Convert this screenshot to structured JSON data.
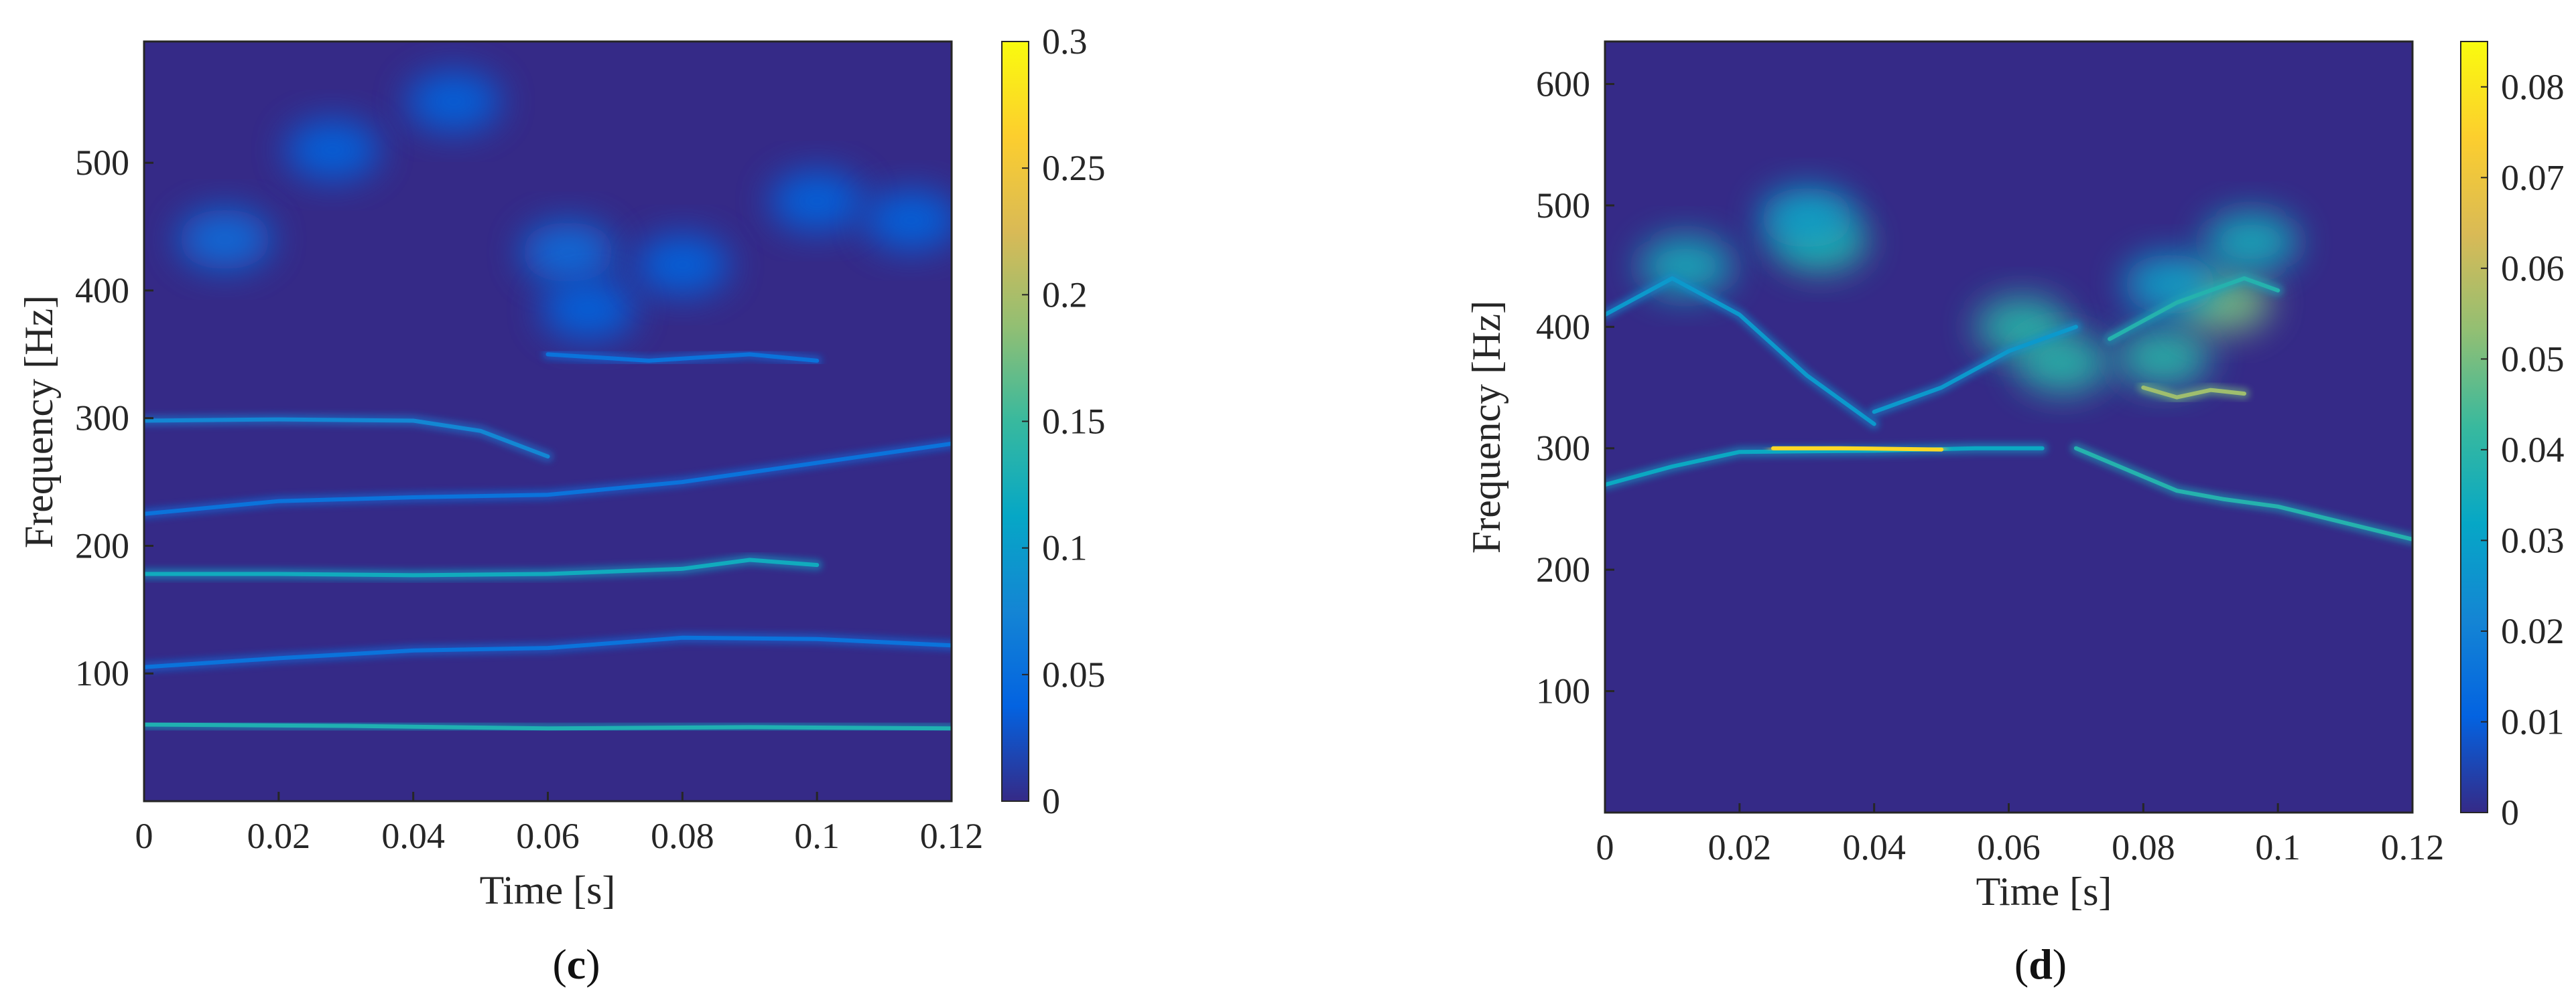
{
  "chart_data": [
    {
      "type": "heatmap",
      "panel_label": "c",
      "xlabel": "Time [s]",
      "ylabel": "Frequency [Hz]",
      "xlim": [
        0,
        0.12
      ],
      "ylim": [
        0,
        595
      ],
      "xticks": [
        "0",
        "0.02",
        "0.04",
        "0.06",
        "0.08",
        "0.1",
        "0.12"
      ],
      "yticks": [
        100,
        200,
        300,
        400,
        500
      ],
      "colorbar": {
        "range": [
          0,
          0.3
        ],
        "ticks": [
          "0",
          "0.05",
          "0.1",
          "0.15",
          "0.2",
          "0.25",
          "0.3"
        ],
        "colormap": "parula"
      },
      "ridges": [
        {
          "points": [
            [
              0,
              60
            ],
            [
              0.03,
              59
            ],
            [
              0.06,
              57
            ],
            [
              0.09,
              58
            ],
            [
              0.12,
              57
            ]
          ],
          "intensity": 0.12
        },
        {
          "points": [
            [
              0,
              105
            ],
            [
              0.02,
              112
            ],
            [
              0.04,
              118
            ],
            [
              0.06,
              120
            ],
            [
              0.08,
              128
            ],
            [
              0.1,
              127
            ],
            [
              0.12,
              122
            ]
          ],
          "intensity": 0.05
        },
        {
          "points": [
            [
              0,
              178
            ],
            [
              0.02,
              178
            ],
            [
              0.04,
              177
            ],
            [
              0.06,
              178
            ],
            [
              0.08,
              182
            ],
            [
              0.09,
              189
            ],
            [
              0.1,
              185
            ]
          ],
          "intensity": 0.11
        },
        {
          "points": [
            [
              0,
              225
            ],
            [
              0.02,
              235
            ],
            [
              0.04,
              238
            ],
            [
              0.06,
              240
            ],
            [
              0.08,
              250
            ],
            [
              0.1,
              265
            ],
            [
              0.12,
              280
            ]
          ],
          "intensity": 0.05
        },
        {
          "points": [
            [
              0,
              298
            ],
            [
              0.02,
              299
            ],
            [
              0.04,
              298
            ],
            [
              0.05,
              290
            ],
            [
              0.06,
              270
            ]
          ],
          "intensity": 0.07
        },
        {
          "points": [
            [
              0.06,
              350
            ],
            [
              0.075,
              345
            ],
            [
              0.09,
              350
            ],
            [
              0.1,
              345
            ]
          ],
          "intensity": 0.05
        }
      ],
      "blobs": [
        {
          "t": 0.012,
          "f": 440,
          "intensity": 0.05
        },
        {
          "t": 0.028,
          "f": 510,
          "intensity": 0.04
        },
        {
          "t": 0.046,
          "f": 548,
          "intensity": 0.04
        },
        {
          "t": 0.063,
          "f": 430,
          "intensity": 0.05
        },
        {
          "t": 0.066,
          "f": 385,
          "intensity": 0.04
        },
        {
          "t": 0.08,
          "f": 420,
          "intensity": 0.04
        },
        {
          "t": 0.1,
          "f": 470,
          "intensity": 0.04
        },
        {
          "t": 0.114,
          "f": 455,
          "intensity": 0.04
        }
      ]
    },
    {
      "type": "heatmap",
      "panel_label": "d",
      "xlabel": "Time [s]",
      "ylabel": "Frequency [Hz]",
      "xlim": [
        0,
        0.12
      ],
      "ylim": [
        0,
        635
      ],
      "xticks": [
        "0",
        "0.02",
        "0.04",
        "0.06",
        "0.08",
        "0.1",
        "0.12"
      ],
      "yticks": [
        100,
        200,
        300,
        400,
        500,
        600
      ],
      "colorbar": {
        "range": [
          0,
          0.085
        ],
        "ticks": [
          "0",
          "0.01",
          "0.02",
          "0.03",
          "0.04",
          "0.05",
          "0.06",
          "0.07",
          "0.08"
        ],
        "colormap": "parula"
      },
      "ridges": [
        {
          "points": [
            [
              0,
              270
            ],
            [
              0.01,
              285
            ],
            [
              0.02,
              297
            ],
            [
              0.04,
              298
            ],
            [
              0.055,
              300
            ],
            [
              0.065,
              300
            ]
          ],
          "intensity": 0.03
        },
        {
          "points": [
            [
              0.025,
              300
            ],
            [
              0.035,
              300
            ],
            [
              0.05,
              299
            ]
          ],
          "intensity": 0.07
        },
        {
          "points": [
            [
              0.07,
              300
            ],
            [
              0.085,
              265
            ],
            [
              0.092,
              258
            ],
            [
              0.1,
              252
            ],
            [
              0.12,
              225
            ]
          ],
          "intensity": 0.035
        },
        {
          "points": [
            [
              0,
              410
            ],
            [
              0.01,
              440
            ],
            [
              0.02,
              410
            ],
            [
              0.03,
              360
            ],
            [
              0.04,
              320
            ]
          ],
          "intensity": 0.025
        },
        {
          "points": [
            [
              0.04,
              330
            ],
            [
              0.05,
              350
            ],
            [
              0.06,
              380
            ],
            [
              0.07,
              400
            ]
          ],
          "intensity": 0.025
        },
        {
          "points": [
            [
              0.08,
              350
            ],
            [
              0.085,
              342
            ],
            [
              0.09,
              348
            ],
            [
              0.095,
              345
            ]
          ],
          "intensity": 0.05
        },
        {
          "points": [
            [
              0.075,
              390
            ],
            [
              0.085,
              420
            ],
            [
              0.095,
              440
            ],
            [
              0.1,
              430
            ]
          ],
          "intensity": 0.035
        }
      ],
      "blobs": [
        {
          "t": 0.012,
          "f": 450,
          "intensity": 0.035
        },
        {
          "t": 0.032,
          "f": 470,
          "intensity": 0.04
        },
        {
          "t": 0.03,
          "f": 490,
          "intensity": 0.03
        },
        {
          "t": 0.062,
          "f": 400,
          "intensity": 0.04
        },
        {
          "t": 0.068,
          "f": 370,
          "intensity": 0.04
        },
        {
          "t": 0.083,
          "f": 375,
          "intensity": 0.04
        },
        {
          "t": 0.092,
          "f": 420,
          "intensity": 0.05
        },
        {
          "t": 0.096,
          "f": 470,
          "intensity": 0.035
        },
        {
          "t": 0.084,
          "f": 435,
          "intensity": 0.03
        }
      ]
    }
  ]
}
